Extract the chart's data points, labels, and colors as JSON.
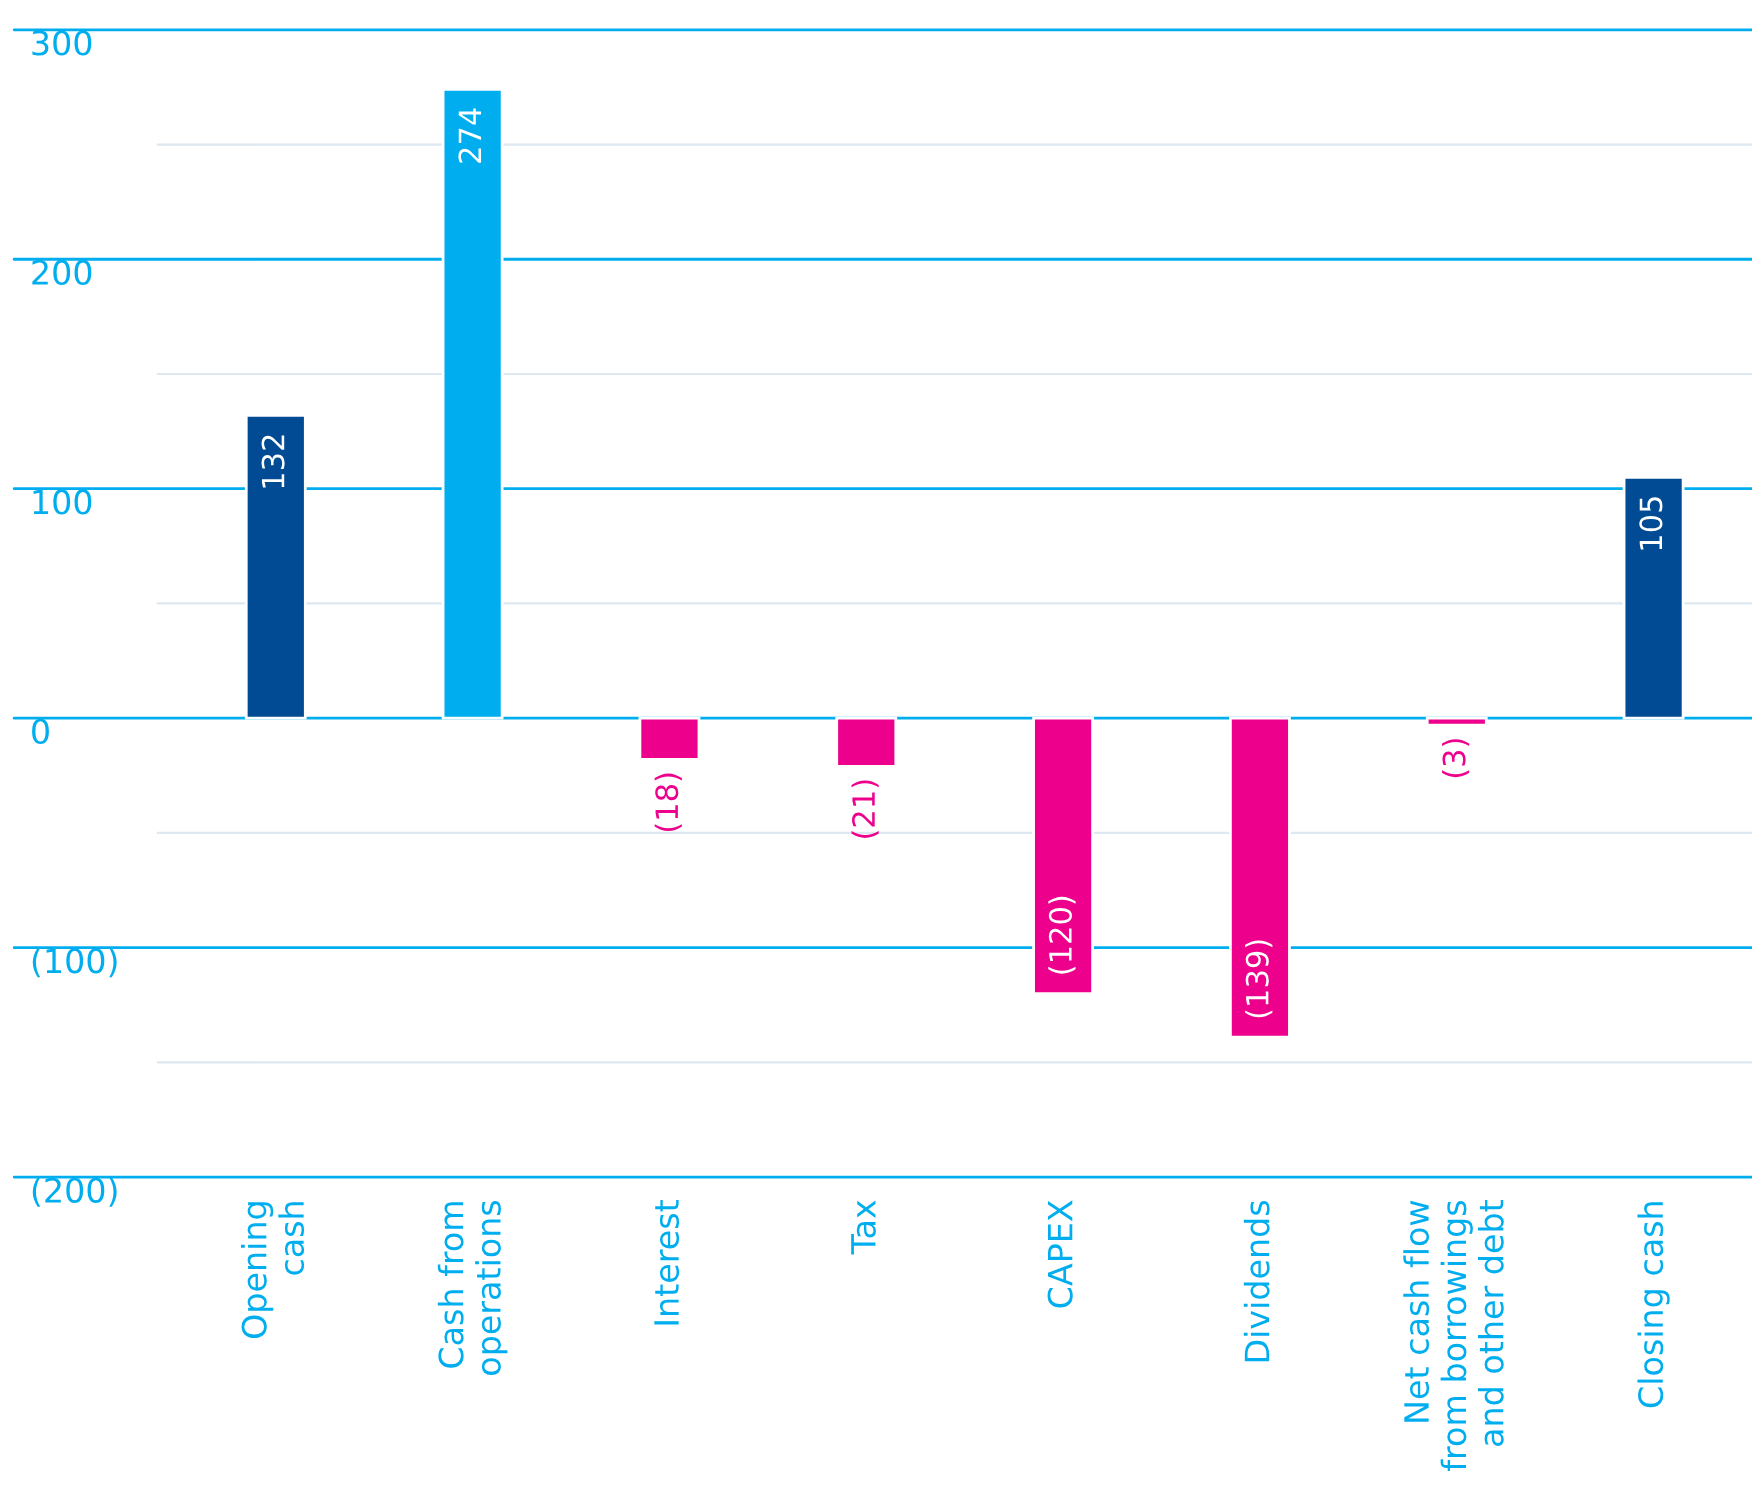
{
  "chart_data": {
    "type": "bar",
    "categories": [
      "Opening\ncash",
      "Cash from\noperations",
      "Interest",
      "Tax",
      "CAPEX",
      "Dividends",
      "Net cash flow\nfrom borrowings\nand other debt",
      "Closing cash"
    ],
    "values": [
      132,
      274,
      -18,
      -21,
      -120,
      -139,
      -3,
      105
    ],
    "colors": [
      "#004b93",
      "#00aeef",
      "#ec008c",
      "#ec008c",
      "#ec008c",
      "#ec008c",
      "#ec008c",
      "#004b93"
    ],
    "value_labels": [
      "132",
      "274",
      "(18)",
      "(21)",
      "(120)",
      "(139)",
      "(3)",
      "105"
    ],
    "ylim": [
      -200,
      300
    ],
    "yticks": [
      {
        "value": -200,
        "label": "(200)"
      },
      {
        "value": -150,
        "label": null
      },
      {
        "value": -100,
        "label": "(100)"
      },
      {
        "value": -50,
        "label": null
      },
      0,
      {
        "value": 50,
        "label": null
      },
      100,
      {
        "value": 150,
        "label": null
      },
      200,
      {
        "value": 250,
        "label": null
      },
      300
    ],
    "grid": "y"
  }
}
